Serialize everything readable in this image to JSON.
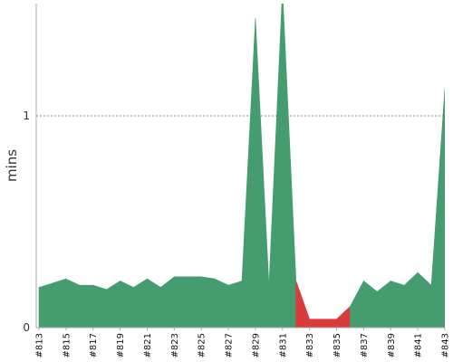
{
  "chart_data": {
    "type": "area",
    "ylabel": "mins",
    "ylim": [
      0,
      1.53
    ],
    "yticks": [
      0,
      1
    ],
    "grid": "dashed line at 1",
    "colors": {
      "success": "#459c6e",
      "failure": "#d93b3b",
      "axis": "#aaaaaa",
      "grid": "#8a8a8a"
    },
    "x": [
      "#813",
      "#814",
      "#815",
      "#816",
      "#817",
      "#818",
      "#819",
      "#820",
      "#821",
      "#822",
      "#823",
      "#824",
      "#825",
      "#826",
      "#827",
      "#828",
      "#829",
      "#830",
      "#831",
      "#832",
      "#833",
      "#834",
      "#835",
      "#836",
      "#837",
      "#838",
      "#839",
      "#840",
      "#841",
      "#842",
      "#843"
    ],
    "values": [
      0.19,
      0.21,
      0.23,
      0.2,
      0.2,
      0.18,
      0.22,
      0.19,
      0.23,
      0.19,
      0.24,
      0.24,
      0.24,
      0.23,
      0.2,
      0.22,
      1.46,
      0.2,
      1.6,
      0.22,
      0.04,
      0.04,
      0.04,
      0.1,
      0.22,
      0.17,
      0.22,
      0.2,
      0.26,
      0.2,
      1.13
    ],
    "status": [
      "success",
      "success",
      "success",
      "success",
      "success",
      "success",
      "success",
      "success",
      "success",
      "success",
      "success",
      "success",
      "success",
      "success",
      "success",
      "success",
      "success",
      "success",
      "success",
      "success",
      "failure",
      "failure",
      "failure",
      "success",
      "success",
      "success",
      "success",
      "success",
      "success",
      "success",
      "success"
    ],
    "xtick_labels": [
      "#813",
      "#815",
      "#817",
      "#819",
      "#821",
      "#823",
      "#825",
      "#827",
      "#829",
      "#831",
      "#833",
      "#835",
      "#837",
      "#839",
      "#841",
      "#843"
    ]
  }
}
